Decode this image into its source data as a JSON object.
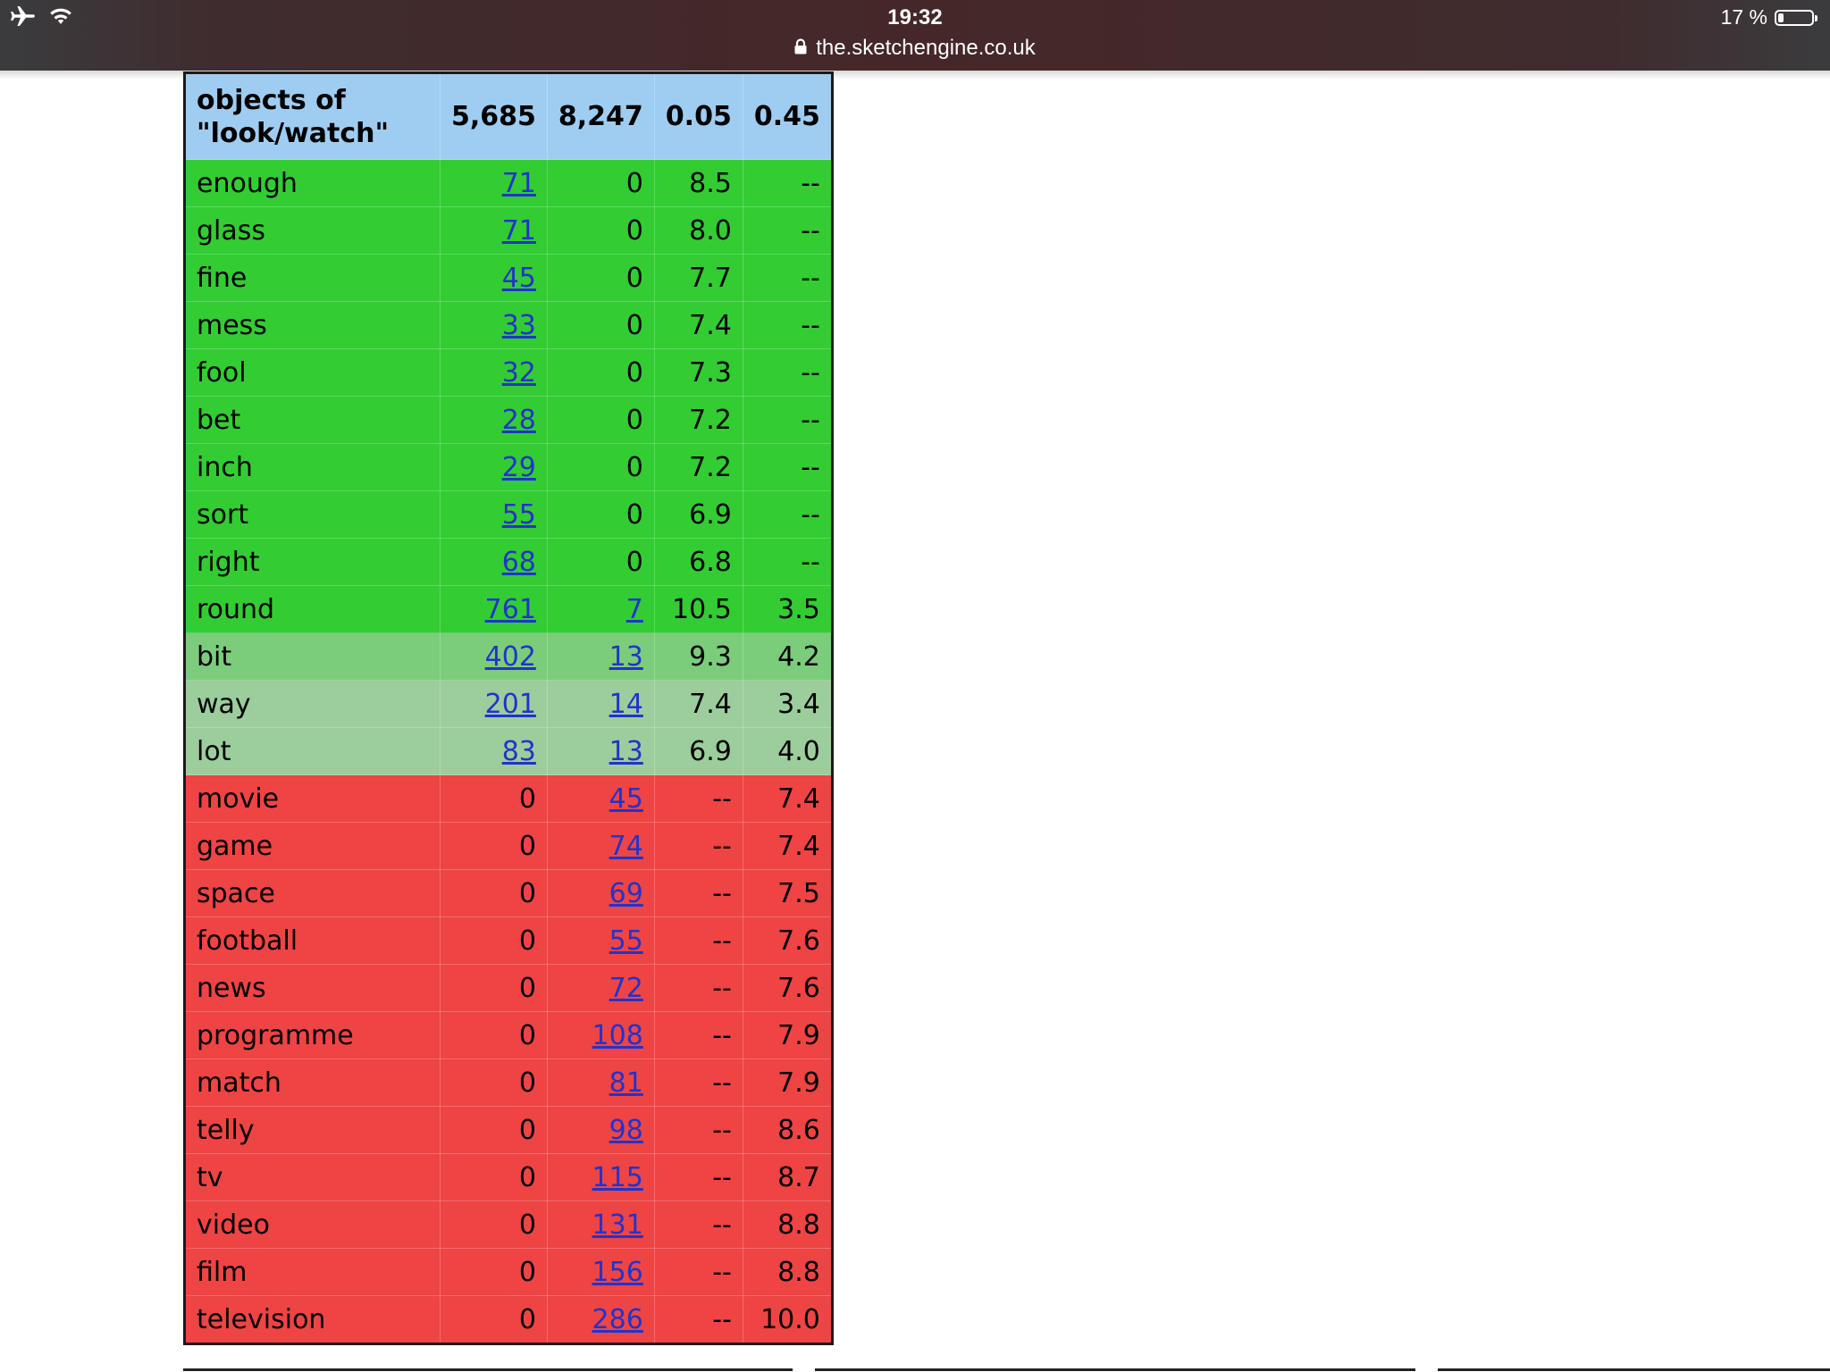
{
  "status_bar": {
    "time": "19:32",
    "battery_percent": "17 %",
    "battery_level": 0.17,
    "icons": [
      "airplane-icon",
      "wifi-icon",
      "battery-icon"
    ]
  },
  "address_bar": {
    "url": "the.sketchengine.co.uk",
    "secure_icon": "lock-icon"
  },
  "table": {
    "header": {
      "label_line1": "objects of",
      "label_line2": "\"look/watch\"",
      "cols": [
        "5,685",
        "8,247",
        "0.05",
        "0.45"
      ]
    },
    "colors": {
      "green": "#33cc33",
      "mid_green": "#7bcd7b",
      "light_green": "#9ccd9c",
      "red": "#ee4444",
      "header": "#9fcdf1",
      "link": "#2233cc"
    },
    "rows": [
      {
        "word": "enough",
        "f1": "71",
        "f2": "0",
        "s1": "8.5",
        "s2": "--",
        "tone": "green",
        "link1": true,
        "link2": false
      },
      {
        "word": "glass",
        "f1": "71",
        "f2": "0",
        "s1": "8.0",
        "s2": "--",
        "tone": "green",
        "link1": true,
        "link2": false
      },
      {
        "word": "fine",
        "f1": "45",
        "f2": "0",
        "s1": "7.7",
        "s2": "--",
        "tone": "green",
        "link1": true,
        "link2": false
      },
      {
        "word": "mess",
        "f1": "33",
        "f2": "0",
        "s1": "7.4",
        "s2": "--",
        "tone": "green",
        "link1": true,
        "link2": false
      },
      {
        "word": "fool",
        "f1": "32",
        "f2": "0",
        "s1": "7.3",
        "s2": "--",
        "tone": "green",
        "link1": true,
        "link2": false
      },
      {
        "word": "bet",
        "f1": "28",
        "f2": "0",
        "s1": "7.2",
        "s2": "--",
        "tone": "green",
        "link1": true,
        "link2": false
      },
      {
        "word": "inch",
        "f1": "29",
        "f2": "0",
        "s1": "7.2",
        "s2": "--",
        "tone": "green",
        "link1": true,
        "link2": false
      },
      {
        "word": "sort",
        "f1": "55",
        "f2": "0",
        "s1": "6.9",
        "s2": "--",
        "tone": "green",
        "link1": true,
        "link2": false
      },
      {
        "word": "right",
        "f1": "68",
        "f2": "0",
        "s1": "6.8",
        "s2": "--",
        "tone": "green",
        "link1": true,
        "link2": false
      },
      {
        "word": "round",
        "f1": "761",
        "f2": "7",
        "s1": "10.5",
        "s2": "3.5",
        "tone": "green",
        "link1": true,
        "link2": true
      },
      {
        "word": "bit",
        "f1": "402",
        "f2": "13",
        "s1": "9.3",
        "s2": "4.2",
        "tone": "mid",
        "link1": true,
        "link2": true
      },
      {
        "word": "way",
        "f1": "201",
        "f2": "14",
        "s1": "7.4",
        "s2": "3.4",
        "tone": "light",
        "link1": true,
        "link2": true
      },
      {
        "word": "lot",
        "f1": "83",
        "f2": "13",
        "s1": "6.9",
        "s2": "4.0",
        "tone": "light",
        "link1": true,
        "link2": true
      },
      {
        "word": "movie",
        "f1": "0",
        "f2": "45",
        "s1": "--",
        "s2": "7.4",
        "tone": "red",
        "link1": false,
        "link2": true
      },
      {
        "word": "game",
        "f1": "0",
        "f2": "74",
        "s1": "--",
        "s2": "7.4",
        "tone": "red",
        "link1": false,
        "link2": true
      },
      {
        "word": "space",
        "f1": "0",
        "f2": "69",
        "s1": "--",
        "s2": "7.5",
        "tone": "red",
        "link1": false,
        "link2": true
      },
      {
        "word": "football",
        "f1": "0",
        "f2": "55",
        "s1": "--",
        "s2": "7.6",
        "tone": "red",
        "link1": false,
        "link2": true
      },
      {
        "word": "news",
        "f1": "0",
        "f2": "72",
        "s1": "--",
        "s2": "7.6",
        "tone": "red",
        "link1": false,
        "link2": true
      },
      {
        "word": "programme",
        "f1": "0",
        "f2": "108",
        "s1": "--",
        "s2": "7.9",
        "tone": "red",
        "link1": false,
        "link2": true
      },
      {
        "word": "match",
        "f1": "0",
        "f2": "81",
        "s1": "--",
        "s2": "7.9",
        "tone": "red",
        "link1": false,
        "link2": true
      },
      {
        "word": "telly",
        "f1": "0",
        "f2": "98",
        "s1": "--",
        "s2": "8.6",
        "tone": "red",
        "link1": false,
        "link2": true
      },
      {
        "word": "tv",
        "f1": "0",
        "f2": "115",
        "s1": "--",
        "s2": "8.7",
        "tone": "red",
        "link1": false,
        "link2": true
      },
      {
        "word": "video",
        "f1": "0",
        "f2": "131",
        "s1": "--",
        "s2": "8.8",
        "tone": "red",
        "link1": false,
        "link2": true
      },
      {
        "word": "film",
        "f1": "0",
        "f2": "156",
        "s1": "--",
        "s2": "8.8",
        "tone": "red",
        "link1": false,
        "link2": true
      },
      {
        "word": "television",
        "f1": "0",
        "f2": "286",
        "s1": "--",
        "s2": "10.0",
        "tone": "red",
        "link1": false,
        "link2": true
      }
    ]
  }
}
